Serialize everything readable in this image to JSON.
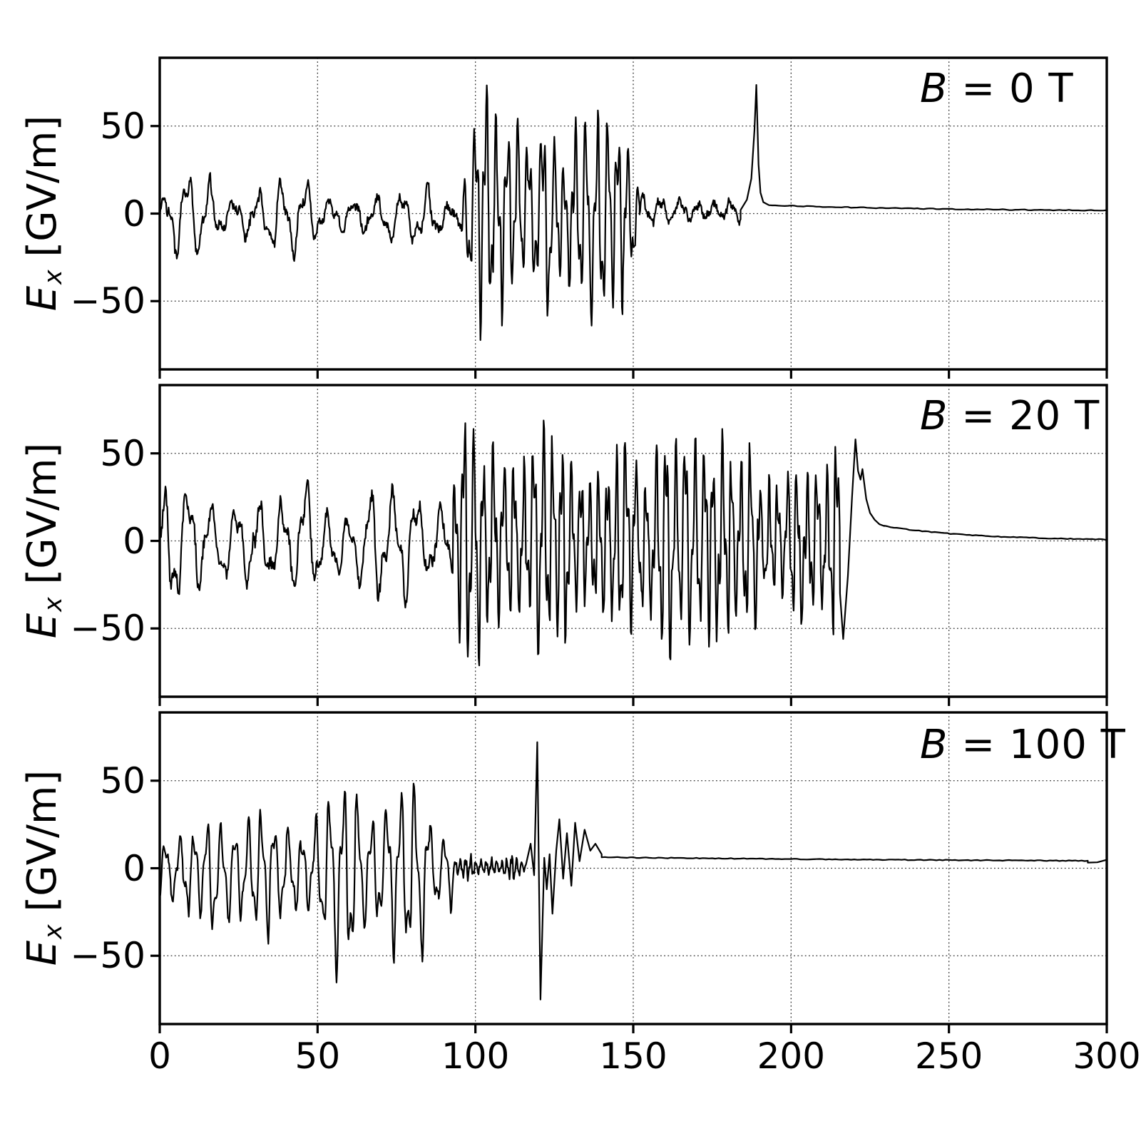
{
  "figure": {
    "background": "#ffffff",
    "text_color": "#000000"
  },
  "chart_data": {
    "type": "line",
    "x_range": [
      0,
      300
    ],
    "y_range": [
      -89,
      89
    ],
    "x_ticks": [
      0,
      50,
      100,
      150,
      200,
      250,
      300
    ],
    "y_ticks": [
      50,
      0,
      -50
    ],
    "y_tick_labels": [
      "50",
      "0",
      "−50"
    ],
    "grid": "dotted",
    "grid_color": "#333333",
    "line_color": "#000000",
    "xlabel": "",
    "ylabel": "Ex [GV/m]",
    "ylabel_parts": {
      "var": "E",
      "sub": "x",
      "units": " [GV/m]"
    },
    "legend": "none",
    "panels": [
      {
        "label": "B = 0 T",
        "label_b": "B",
        "label_rest": " = 0 T",
        "seed": 7,
        "segments": [
          {
            "type": "osc",
            "x0": 0,
            "x1": 96,
            "period": 7.6,
            "amp_env": [
              [
                0,
                10
              ],
              [
                8,
                16
              ],
              [
                14,
                18
              ],
              [
                22,
                14
              ],
              [
                30,
                15
              ],
              [
                38,
                16
              ],
              [
                48,
                13
              ],
              [
                58,
                15
              ],
              [
                68,
                15
              ],
              [
                78,
                13
              ],
              [
                88,
                12
              ],
              [
                96,
                13
              ]
            ],
            "amp_var": 0.4,
            "jitter": 2.6,
            "mean": -1.5
          },
          {
            "type": "chaos",
            "x0": 96,
            "x1": 152,
            "period": 3.4,
            "amp_env": [
              [
                96,
                18
              ],
              [
                100,
                52
              ],
              [
                104,
                68
              ],
              [
                108,
                72
              ],
              [
                112,
                46
              ],
              [
                116,
                52
              ],
              [
                120,
                40
              ],
              [
                126,
                42
              ],
              [
                132,
                38
              ],
              [
                138,
                44
              ],
              [
                144,
                44
              ],
              [
                150,
                40
              ],
              [
                152,
                26
              ]
            ],
            "jitter": 3.5,
            "mean": -2
          },
          {
            "type": "osc",
            "x0": 152,
            "x1": 184,
            "period": 5.5,
            "amp_env": [
              [
                152,
                8
              ],
              [
                160,
                6
              ],
              [
                170,
                7
              ],
              [
                178,
                6
              ],
              [
                184,
                5
              ]
            ],
            "amp_var": 0.4,
            "jitter": 2.2,
            "mean": 1.5
          },
          {
            "type": "points",
            "pts": [
              [
                184,
                2
              ],
              [
                186,
                8
              ],
              [
                187.4,
                20
              ],
              [
                188.4,
                48
              ],
              [
                189,
                73.5
              ],
              [
                189.7,
                28
              ],
              [
                190.3,
                12
              ],
              [
                191.2,
                6.5
              ],
              [
                193,
                4.8
              ]
            ]
          },
          {
            "type": "decay",
            "x0": 193,
            "x1": 300,
            "y0": 4.8,
            "y1": 1.2,
            "tau": 60,
            "jitter": 0.25
          }
        ]
      },
      {
        "label": "B = 20 T",
        "label_b": "B",
        "label_rest": " = 20 T",
        "seed": 23,
        "segments": [
          {
            "type": "osc",
            "x0": 0,
            "x1": 93,
            "period": 7.3,
            "amp_env": [
              [
                0,
                16
              ],
              [
                8,
                26
              ],
              [
                16,
                28
              ],
              [
                26,
                24
              ],
              [
                36,
                26
              ],
              [
                46,
                24
              ],
              [
                56,
                22
              ],
              [
                66,
                26
              ],
              [
                76,
                22
              ],
              [
                86,
                24
              ],
              [
                93,
                26
              ]
            ],
            "amp_var": 0.3,
            "jitter": 3,
            "mean": -1
          },
          {
            "type": "chaos",
            "x0": 93,
            "x1": 215.5,
            "period": 3.0,
            "amp_env": [
              [
                93,
                25
              ],
              [
                97,
                60
              ],
              [
                102,
                62
              ],
              [
                107,
                60
              ],
              [
                112,
                50
              ],
              [
                120,
                46
              ],
              [
                128,
                50
              ],
              [
                136,
                44
              ],
              [
                143,
                55
              ],
              [
                148,
                55
              ],
              [
                155,
                45
              ],
              [
                163,
                48
              ],
              [
                170,
                46
              ],
              [
                178,
                42
              ],
              [
                186,
                40
              ],
              [
                193,
                32
              ],
              [
                200,
                38
              ],
              [
                206,
                46
              ],
              [
                212,
                50
              ],
              [
                215.5,
                52
              ]
            ],
            "jitter": 4,
            "mean": 0
          },
          {
            "type": "points",
            "pts": [
              [
                215.5,
                -30
              ],
              [
                216.5,
                -56
              ],
              [
                218,
                -20
              ],
              [
                219.3,
                25
              ],
              [
                220.4,
                58
              ],
              [
                221.2,
                40
              ],
              [
                222,
                35
              ],
              [
                222.6,
                41
              ],
              [
                223.8,
                24
              ],
              [
                225,
                16
              ],
              [
                226.5,
                12
              ],
              [
                228,
                9.5
              ],
              [
                229.5,
                8.5
              ]
            ]
          },
          {
            "type": "decay",
            "x0": 229.5,
            "x1": 300,
            "y0": 8.5,
            "y1": 0.2,
            "tau": 28,
            "jitter": 0.2
          }
        ]
      },
      {
        "label": "B = 100 T",
        "label_b": "B",
        "label_rest": " = 100 T",
        "seed": 41,
        "segments": [
          {
            "type": "osc",
            "x0": 0,
            "x1": 93,
            "period": 4.4,
            "amp_env": [
              [
                0,
                16
              ],
              [
                6,
                24
              ],
              [
                14,
                27
              ],
              [
                24,
                30
              ],
              [
                34,
                28
              ],
              [
                44,
                32
              ],
              [
                54,
                34
              ],
              [
                62,
                40
              ],
              [
                70,
                32
              ],
              [
                78,
                36
              ],
              [
                86,
                44
              ],
              [
                91,
                30
              ],
              [
                93,
                16
              ]
            ],
            "amp_var": 0.3,
            "jitter": 1.6,
            "mean": -2
          },
          {
            "type": "osc",
            "x0": 93,
            "x1": 116,
            "period": 1.6,
            "amp_env": [
              [
                93,
                6
              ],
              [
                100,
                4
              ],
              [
                108,
                4
              ],
              [
                112,
                6
              ],
              [
                116,
                5
              ]
            ],
            "amp_var": 0.3,
            "jitter": 1.2,
            "mean": 0.5
          },
          {
            "type": "points",
            "pts": [
              [
                116,
                2
              ],
              [
                117.5,
                14
              ],
              [
                118.6,
                -4
              ],
              [
                119.6,
                72
              ],
              [
                120.6,
                -75
              ],
              [
                121.8,
                6
              ],
              [
                122.6,
                -12
              ],
              [
                123.5,
                8
              ],
              [
                124.4,
                -26
              ],
              [
                125.6,
                10
              ],
              [
                126.6,
                28
              ],
              [
                127.8,
                -6
              ],
              [
                129,
                20
              ],
              [
                130.4,
                -10
              ],
              [
                131.6,
                26
              ],
              [
                133,
                4
              ],
              [
                134.6,
                22
              ],
              [
                136.4,
                10
              ],
              [
                138,
                14
              ],
              [
                140,
                8
              ]
            ]
          },
          {
            "type": "decay",
            "x0": 140,
            "x1": 294,
            "y0": 6.3,
            "y1": 3.1,
            "tau": 150,
            "jitter": 0.22
          },
          {
            "type": "points",
            "pts": [
              [
                294,
                3.2
              ],
              [
                297,
                3.4
              ],
              [
                300,
                4.8
              ]
            ]
          }
        ]
      }
    ]
  }
}
